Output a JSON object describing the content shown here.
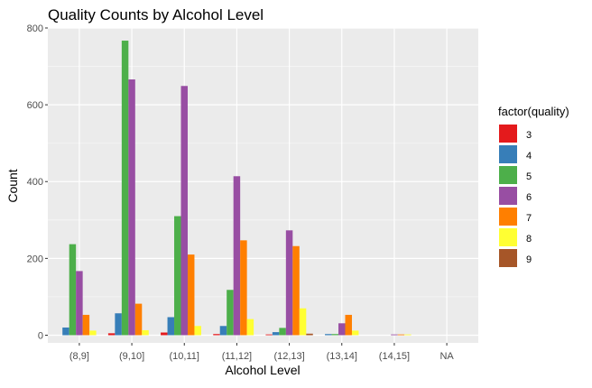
{
  "chart_data": {
    "type": "bar",
    "title": "Quality Counts by Alcohol Level",
    "xlabel": "Alcohol Level",
    "ylabel": "Count",
    "ylim": [
      -20,
      800
    ],
    "yticks": [
      0,
      200,
      400,
      600,
      800
    ],
    "grid": true,
    "legend_position": "right",
    "legend_title": "factor(quality)",
    "categories": [
      "(8,9]",
      "(9,10]",
      "(10,11]",
      "(11,12]",
      "(12,13]",
      "(13,14]",
      "(14,15]",
      "NA"
    ],
    "series": [
      {
        "name": "3",
        "color": "#E41A1C",
        "values": [
          0,
          5,
          7,
          3,
          2,
          0,
          0,
          0
        ]
      },
      {
        "name": "4",
        "color": "#377EB8",
        "values": [
          20,
          57,
          47,
          24,
          8,
          3,
          0,
          0
        ]
      },
      {
        "name": "5",
        "color": "#4DAF4A",
        "values": [
          237,
          767,
          310,
          118,
          19,
          3,
          0,
          0
        ]
      },
      {
        "name": "6",
        "color": "#984EA3",
        "values": [
          167,
          666,
          649,
          414,
          273,
          31,
          2,
          0
        ]
      },
      {
        "name": "7",
        "color": "#FF7F00",
        "values": [
          53,
          82,
          210,
          247,
          232,
          53,
          2,
          0
        ]
      },
      {
        "name": "8",
        "color": "#FFFF33",
        "values": [
          12,
          13,
          24,
          42,
          70,
          12,
          2,
          0
        ]
      },
      {
        "name": "9",
        "color": "#A65628",
        "values": [
          0,
          0,
          0,
          0,
          4,
          0,
          0,
          0
        ]
      }
    ]
  }
}
